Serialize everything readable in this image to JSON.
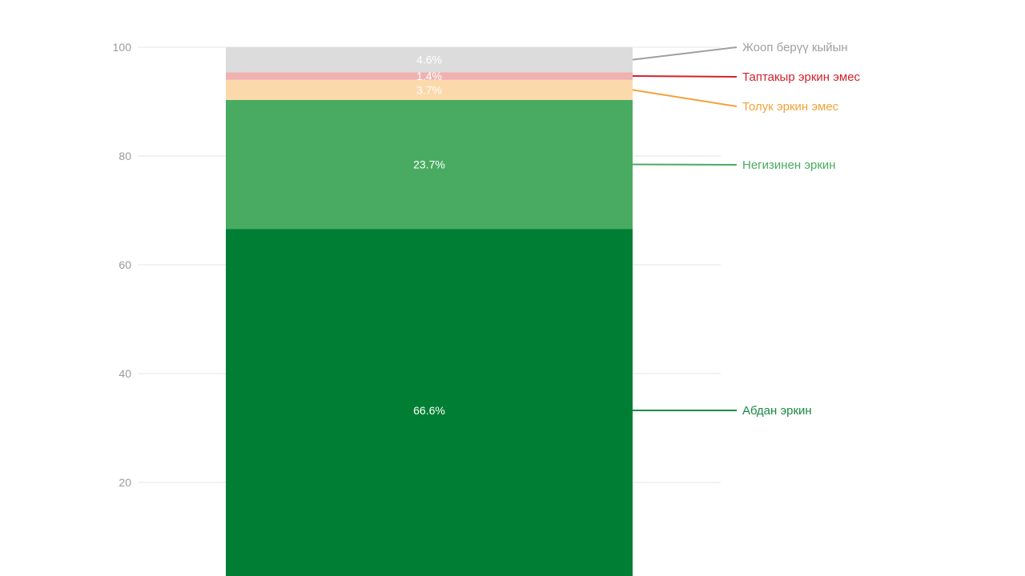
{
  "chart_data": {
    "type": "bar",
    "stacked": true,
    "orientation": "vertical",
    "categories": [
      ""
    ],
    "ylim": [
      0,
      100
    ],
    "y_ticks": [
      20,
      40,
      60,
      80,
      100
    ],
    "grid": true,
    "legend_placement": "right (labels connected to segments by leader lines)",
    "series": [
      {
        "name": "Абдан эркин",
        "values": [
          66.6
        ],
        "label": "66.6%",
        "color": "#007e33",
        "label_color": "#ffffff",
        "legend_color": "#1a8a45"
      },
      {
        "name": "Негизинен эркин",
        "values": [
          23.7
        ],
        "label": "23.7%",
        "color": "#49ab61",
        "label_color": "#ffffff",
        "legend_color": "#49ab61"
      },
      {
        "name": "Толук эркин эмес",
        "values": [
          3.7
        ],
        "label": "3.7%",
        "color": "#fcd9ab",
        "label_color": "#ffffff",
        "legend_color": "#f2a33a"
      },
      {
        "name": "Таптакыр эркин эмес",
        "values": [
          1.4
        ],
        "label": "1.4%",
        "color": "#f0b1b1",
        "label_color": "#ffffff",
        "legend_color": "#d0232c"
      },
      {
        "name": "Жооп берүү кыйын",
        "values": [
          4.6
        ],
        "label": "4.6%",
        "color": "#dcdcdc",
        "label_color": "#ffffff",
        "legend_color": "#a0a0a0"
      }
    ]
  }
}
